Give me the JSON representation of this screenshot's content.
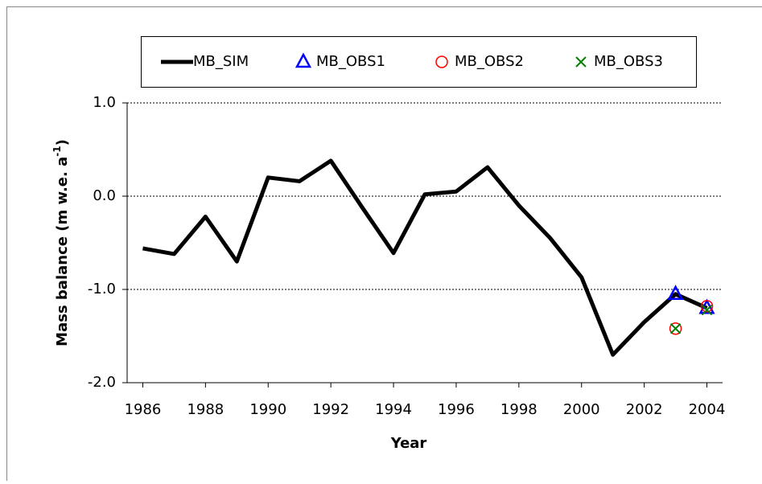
{
  "chart_data": {
    "type": "line",
    "xlabel": "Year",
    "ylabel": "Mass balance (m w.e. a",
    "ylabel_sup": "-1",
    "ylabel_end": ")",
    "xlim": [
      1985.5,
      2004.5
    ],
    "xticks": [
      1986,
      1988,
      1990,
      1992,
      1994,
      1996,
      1998,
      2000,
      2002,
      2004
    ],
    "ylim": [
      -2.0,
      1.0
    ],
    "yticks": [
      {
        "value": -2.0,
        "label": "-2.0"
      },
      {
        "value": -1.0,
        "label": "-1.0"
      },
      {
        "value": 0.0,
        "label": "0.0"
      },
      {
        "value": 1.0,
        "label": "1.0"
      }
    ],
    "grid": true,
    "series": [
      {
        "name": "MB_SIM",
        "color": "#000000",
        "marker": "line",
        "x": [
          1986,
          1987,
          1988,
          1989,
          1990,
          1991,
          1992,
          1993,
          1994,
          1995,
          1996,
          1997,
          1998,
          1999,
          2000,
          2001,
          2002,
          2003,
          2004
        ],
        "values": [
          -0.56,
          -0.62,
          -0.22,
          -0.7,
          0.2,
          0.16,
          0.38,
          -0.12,
          -0.61,
          0.02,
          0.05,
          0.31,
          -0.1,
          -0.45,
          -0.87,
          -1.7,
          -1.35,
          -1.05,
          -1.2
        ]
      },
      {
        "name": "MB_OBS1",
        "color": "#0000ff",
        "marker": "triangle",
        "x": [
          2003,
          2004
        ],
        "values": [
          -1.05,
          -1.2
        ]
      },
      {
        "name": "MB_OBS2",
        "color": "#ff0000",
        "marker": "circle",
        "x": [
          2003,
          2004
        ],
        "values": [
          -1.42,
          -1.18
        ]
      },
      {
        "name": "MB_OBS3",
        "color": "#008000",
        "marker": "x",
        "x": [
          2003,
          2004
        ],
        "values": [
          -1.42,
          -1.22
        ]
      }
    ]
  }
}
